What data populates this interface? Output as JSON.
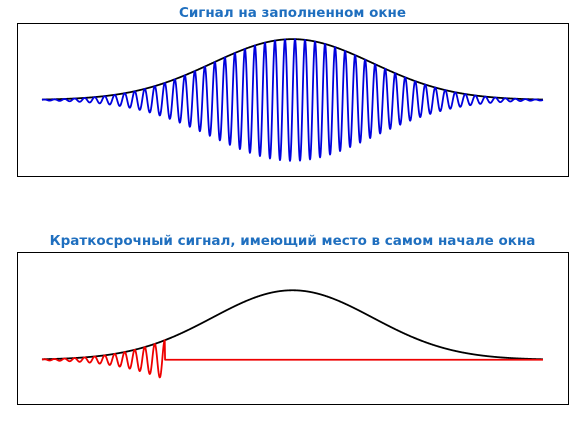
{
  "colors": {
    "title": "#1f6fbf",
    "envelope": "#000000",
    "panel1_signal": "#0000dd",
    "panel2_signal": "#ee0000",
    "frame": "#000000"
  },
  "chart_data": [
    {
      "type": "line",
      "title": "Сигнал на заполненном окне",
      "xlabel": "",
      "ylabel": "",
      "xlim": [
        0,
        1
      ],
      "ylim": [
        -1.15,
        1.15
      ],
      "grid": false,
      "ticks": false,
      "series": [
        {
          "role": "window-envelope",
          "function": "gaussian",
          "center": 0.5,
          "sigma": 0.16,
          "amplitude": 1.0,
          "color": "#000000"
        },
        {
          "role": "signal",
          "function": "gaussian-windowed-sine",
          "center": 0.5,
          "sigma": 0.16,
          "cycles": 50,
          "x_range": [
            0,
            1
          ],
          "color": "#0000dd"
        }
      ]
    },
    {
      "type": "line",
      "title": "Краткосрочный сигнал, имеющий место в самом начале окна",
      "xlabel": "",
      "ylabel": "",
      "xlim": [
        0,
        1
      ],
      "ylim": [
        -0.55,
        1.45
      ],
      "grid": false,
      "ticks": false,
      "series": [
        {
          "role": "window-envelope",
          "function": "gaussian",
          "center": 0.5,
          "sigma": 0.16,
          "amplitude": 1.0,
          "color": "#000000"
        },
        {
          "role": "signal",
          "function": "gaussian-windowed-sine",
          "center": 0.5,
          "sigma": 0.16,
          "cycles": 50,
          "x_range": [
            0,
            0.245
          ],
          "after": 0,
          "color": "#ee0000"
        }
      ]
    }
  ]
}
